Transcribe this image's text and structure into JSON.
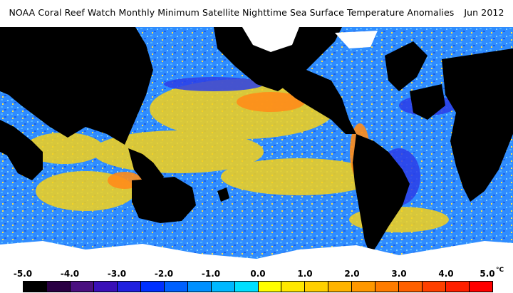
{
  "title": {
    "text": "NOAA Coral Reef Watch Monthly Minimum Satellite Nighttime Sea Surface Temperature Anomalies",
    "date": "Jun 2012"
  },
  "legend": {
    "ticks": [
      "-5.0",
      "-4.0",
      "-3.0",
      "-2.0",
      "-1.0",
      "0.0",
      "1.0",
      "2.0",
      "3.0",
      "4.0",
      "5.0"
    ],
    "unit": "°C",
    "colors": [
      "#000000",
      "#2a0044",
      "#4a1080",
      "#3a10b8",
      "#2020e0",
      "#0030ff",
      "#0060ff",
      "#0090ff",
      "#00b8ff",
      "#00e0ff",
      "#ffff00",
      "#ffe800",
      "#ffd000",
      "#ffb400",
      "#ff9800",
      "#ff7c00",
      "#ff6000",
      "#ff4000",
      "#ff2000",
      "#ff0000"
    ]
  }
}
